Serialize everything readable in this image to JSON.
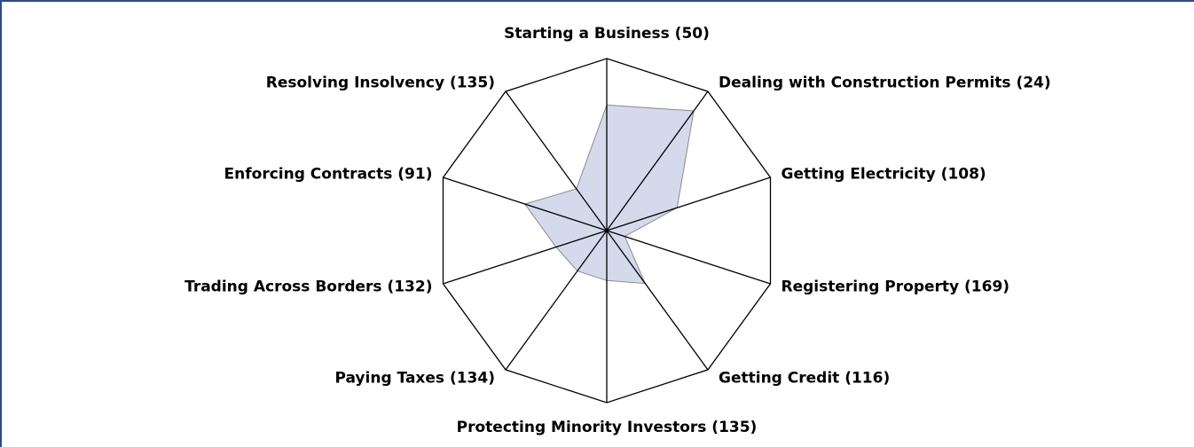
{
  "chart_data": {
    "type": "radar",
    "categories": [
      "Starting a Business (50)",
      "Dealing with Construction Permits (24)",
      "Getting Electricity (108)",
      "Registering Property (169)",
      "Getting Credit (116)",
      "Protecting Minority Investors (135)",
      "Paying Taxes (134)",
      "Trading Across Borders (132)",
      "Enforcing Contracts (91)",
      "Resolving Insolvency (135)"
    ],
    "values": [
      0.73,
      0.86,
      0.43,
      0.11,
      0.38,
      0.29,
      0.29,
      0.31,
      0.5,
      0.3
    ],
    "rlim": [
      0,
      1
    ],
    "color": "#d5d9ec"
  }
}
